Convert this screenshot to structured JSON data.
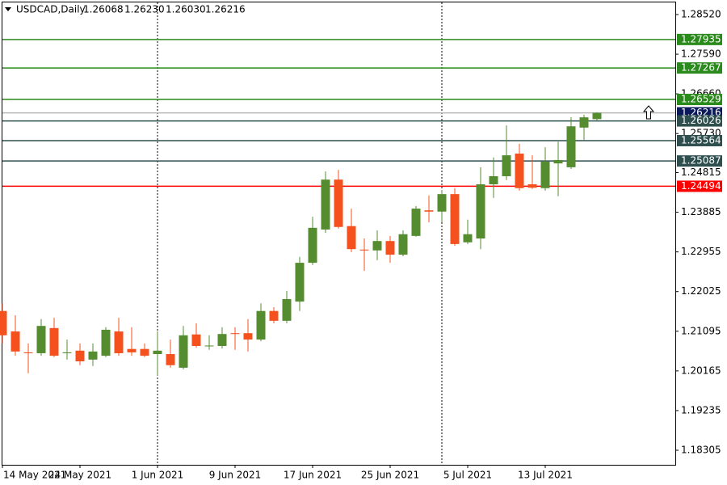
{
  "chart_data": {
    "type": "candlestick",
    "symbol": "USDCAD,Daily",
    "header_values": [
      "1.26068",
      "1.26230",
      "1.26030",
      "1.26216"
    ],
    "categories": [
      "14 May 2021",
      null,
      null,
      null,
      null,
      null,
      "24 May 2021",
      null,
      null,
      null,
      null,
      null,
      "1 Jun 2021",
      null,
      null,
      null,
      null,
      null,
      "9 Jun 2021",
      null,
      null,
      null,
      null,
      null,
      "17 Jun 2021",
      null,
      null,
      null,
      null,
      null,
      "25 Jun 2021",
      null,
      null,
      null,
      null,
      null,
      "5 Jul 2021",
      null,
      null,
      null,
      null,
      null,
      "13 Jul 2021",
      null,
      null,
      null,
      null
    ],
    "open": [
      1.2157,
      1.2109,
      1.206,
      1.2058,
      1.2117,
      1.2058,
      1.2064,
      1.2043,
      1.2052,
      1.2109,
      1.2068,
      1.2068,
      1.2056,
      1.2056,
      1.2024,
      1.2102,
      1.2075,
      1.2075,
      1.2105,
      1.2105,
      1.209,
      1.2157,
      1.2134,
      1.2179,
      1.227,
      1.2348,
      1.2465,
      1.2356,
      1.2301,
      1.2299,
      1.2321,
      1.2289,
      1.2333,
      1.2393,
      1.239,
      1.2431,
      1.2318,
      1.2327,
      1.2454,
      1.2473,
      1.2526,
      1.2454,
      1.2445,
      1.2503,
      1.2494,
      1.2587,
      1.26068
    ],
    "high": [
      1.2175,
      1.2147,
      1.2081,
      1.2138,
      1.2141,
      1.209,
      1.2081,
      1.2081,
      1.2119,
      1.2141,
      1.2119,
      1.2081,
      1.2109,
      1.209,
      1.2122,
      1.2128,
      1.21,
      1.2119,
      1.2119,
      1.2138,
      1.2175,
      1.2166,
      1.2204,
      1.2284,
      1.2378,
      1.2484,
      1.2488,
      1.2397,
      1.2327,
      1.2346,
      1.2333,
      1.2346,
      1.2403,
      1.2428,
      1.2441,
      1.2445,
      1.2371,
      1.2494,
      1.2517,
      1.2592,
      1.2549,
      1.2522,
      1.2541,
      1.2554,
      1.2611,
      1.2617,
      1.2623
    ],
    "low": [
      1.2081,
      1.2052,
      1.2011,
      1.2052,
      1.2049,
      1.2043,
      1.203,
      1.2028,
      1.2049,
      1.2052,
      1.2052,
      1.2049,
      1.2005,
      1.2024,
      1.202,
      1.2071,
      1.2066,
      1.2069,
      1.2066,
      1.2062,
      1.2086,
      1.2128,
      1.2128,
      1.2157,
      1.2265,
      1.234,
      1.235,
      1.2295,
      1.2251,
      1.2276,
      1.227,
      1.2285,
      1.2331,
      1.2365,
      1.2365,
      1.231,
      1.2314,
      1.2302,
      1.2422,
      1.2464,
      1.2439,
      1.2443,
      1.2439,
      1.2426,
      1.249,
      1.2558,
      1.2603
    ],
    "close": [
      1.21,
      1.2062,
      1.2058,
      1.2122,
      1.2052,
      1.206,
      1.2039,
      1.2062,
      1.2113,
      1.2058,
      1.206,
      1.2052,
      1.2064,
      1.203,
      1.21,
      1.2075,
      1.2076,
      1.2103,
      1.2103,
      1.209,
      1.2157,
      1.2134,
      1.2185,
      1.227,
      1.2352,
      1.2465,
      1.2354,
      1.2302,
      1.2299,
      1.2321,
      1.2289,
      1.2337,
      1.2397,
      1.239,
      1.2431,
      1.2314,
      1.2337,
      1.2454,
      1.2473,
      1.2522,
      1.2445,
      1.2446,
      1.2507,
      1.2511,
      1.259,
      1.2611,
      1.26216
    ],
    "up_color": "#548c2f",
    "down_color": "#f4511e",
    "ylim": [
      1.17964,
      1.28861
    ],
    "yticks": [
      {
        "value": 1.2852,
        "label": "1.28520"
      },
      {
        "value": 1.2759,
        "label": "1.27590"
      },
      {
        "value": 1.2666,
        "label": "1.26660"
      },
      {
        "value": 1.2573,
        "label": "1.25730"
      },
      1.24815,
      1.23885,
      1.22955,
      1.22025,
      1.21095,
      1.20165,
      1.19235,
      1.18305
    ],
    "levels": [
      {
        "value": 1.27935,
        "color": "#2b8a1c",
        "line": "#2b8a1c"
      },
      {
        "value": 1.27267,
        "color": "#2b8a1c",
        "line": "#2b8a1c"
      },
      {
        "value": 1.26529,
        "color": "#2b8a1c",
        "line": "#2b8a1c"
      },
      {
        "value": 1.26216,
        "color": "#0c1a5c",
        "line": "#b8b8b8"
      },
      {
        "value": 1.26026,
        "color": "#2f4f4f",
        "line": "#2f4f4f"
      },
      {
        "value": 1.25564,
        "color": "#2f4f4f",
        "line": "#2f4f4f"
      },
      {
        "value": 1.25087,
        "color": "#2f4f4f",
        "line": "#2f4f4f"
      },
      {
        "value": 1.24494,
        "color": "#ff0000",
        "line": "#ff0000"
      }
    ]
  }
}
